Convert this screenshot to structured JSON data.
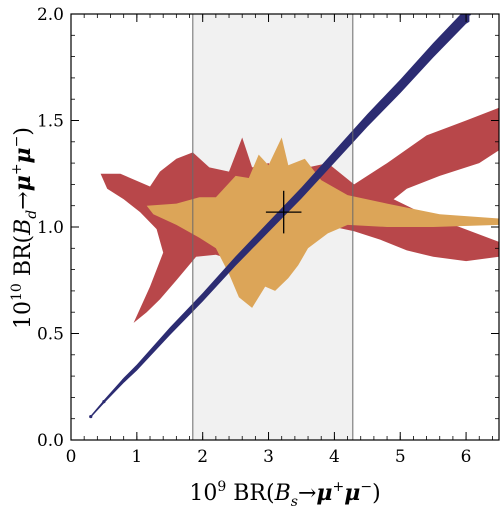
{
  "chart_data": {
    "type": "scatter",
    "title": "",
    "xlabel": "10^9 BR(B_s→μ^+μ^−)",
    "ylabel": "10^10 BR(B_d→μ^+μ^−)",
    "xlabel_parts": {
      "prefix": "10",
      "prefix_exp": "9",
      "br": " BR(",
      "var": "B",
      "var_sub": "s",
      "arrow": "→",
      "mu1": "μ",
      "mu1_sup": "+",
      "mu2": "μ",
      "mu2_sup": "−",
      "close": ")"
    },
    "ylabel_parts": {
      "prefix": "10",
      "prefix_exp": "10",
      "br": " BR(",
      "var": "B",
      "var_sub": "d",
      "arrow": "→",
      "mu1": "μ",
      "mu1_sup": "+",
      "mu2": "μ",
      "mu2_sup": "−",
      "close": ")"
    },
    "xlim": [
      0,
      6.5
    ],
    "ylim": [
      0,
      2.0
    ],
    "xticks": [
      0,
      1,
      2,
      3,
      4,
      5,
      6
    ],
    "xtick_labels": [
      "0",
      "1",
      "2",
      "3",
      "4",
      "5",
      "6"
    ],
    "yticks": [
      0.0,
      0.5,
      1.0,
      1.5,
      2.0
    ],
    "ytick_labels": [
      "0.0",
      "0.5",
      "1.0",
      "1.5",
      "2.0"
    ],
    "grid": false,
    "legend": "none",
    "colors": {
      "red_region": "#b8474a",
      "orange_region": "#dca558",
      "blue_band": "#2c2c72",
      "exp_band_fill": "#f1f1f1",
      "exp_band_edge": "#6a6a6a",
      "sm_point": "#000000"
    },
    "experimental_band": {
      "x_min": 1.85,
      "x_max": 4.28
    },
    "sm_point": {
      "x": 3.23,
      "y": 1.07,
      "x_err": 0.27,
      "y_err": 0.1
    },
    "series": [
      {
        "region": "red",
        "outline": [
          [
            0.45,
            1.25
          ],
          [
            0.75,
            1.25
          ],
          [
            1.2,
            1.19
          ],
          [
            1.35,
            1.26
          ],
          [
            1.6,
            1.32
          ],
          [
            1.85,
            1.35
          ],
          [
            2.1,
            1.28
          ],
          [
            2.4,
            1.26
          ],
          [
            2.6,
            1.42
          ],
          [
            2.75,
            1.28
          ],
          [
            3.0,
            1.3
          ],
          [
            3.2,
            1.25
          ],
          [
            3.6,
            1.28
          ],
          [
            3.9,
            1.3
          ],
          [
            4.3,
            1.2
          ],
          [
            4.8,
            1.3
          ],
          [
            5.4,
            1.43
          ],
          [
            6.0,
            1.5
          ],
          [
            6.5,
            1.56
          ],
          [
            6.5,
            1.36
          ],
          [
            6.2,
            1.3
          ],
          [
            5.6,
            1.24
          ],
          [
            5.1,
            1.18
          ],
          [
            4.9,
            1.13
          ],
          [
            5.3,
            1.07
          ],
          [
            5.9,
            1.0
          ],
          [
            6.5,
            0.93
          ],
          [
            6.5,
            0.86
          ],
          [
            6.0,
            0.84
          ],
          [
            5.5,
            0.86
          ],
          [
            5.1,
            0.89
          ],
          [
            4.7,
            0.94
          ],
          [
            4.3,
            0.98
          ],
          [
            4.0,
            1.0
          ],
          [
            3.7,
            0.99
          ],
          [
            3.4,
            0.96
          ],
          [
            3.2,
            0.8
          ],
          [
            3.05,
            0.88
          ],
          [
            2.95,
            0.77
          ],
          [
            2.8,
            0.86
          ],
          [
            2.55,
            0.8
          ],
          [
            2.4,
            0.85
          ],
          [
            2.2,
            0.87
          ],
          [
            1.9,
            0.86
          ],
          [
            1.6,
            0.75
          ],
          [
            1.35,
            0.66
          ],
          [
            1.15,
            0.6
          ],
          [
            0.95,
            0.55
          ],
          [
            1.2,
            0.72
          ],
          [
            1.4,
            0.88
          ],
          [
            1.3,
            0.99
          ],
          [
            1.05,
            1.07
          ],
          [
            0.8,
            1.13
          ],
          [
            0.55,
            1.18
          ]
        ]
      },
      {
        "region": "orange",
        "outline": [
          [
            1.15,
            1.1
          ],
          [
            1.6,
            1.11
          ],
          [
            1.95,
            1.14
          ],
          [
            2.2,
            1.14
          ],
          [
            2.5,
            1.24
          ],
          [
            2.7,
            1.23
          ],
          [
            2.85,
            1.34
          ],
          [
            3.0,
            1.29
          ],
          [
            3.2,
            1.42
          ],
          [
            3.3,
            1.29
          ],
          [
            3.55,
            1.32
          ],
          [
            3.8,
            1.22
          ],
          [
            4.2,
            1.15
          ],
          [
            4.8,
            1.11
          ],
          [
            5.6,
            1.06
          ],
          [
            6.5,
            1.04
          ],
          [
            6.5,
            1.01
          ],
          [
            5.5,
            1.0
          ],
          [
            4.8,
            1.0
          ],
          [
            4.2,
            1.01
          ],
          [
            3.9,
            0.97
          ],
          [
            3.6,
            0.9
          ],
          [
            3.45,
            0.82
          ],
          [
            3.3,
            0.76
          ],
          [
            3.1,
            0.7
          ],
          [
            2.95,
            0.72
          ],
          [
            2.75,
            0.62
          ],
          [
            2.55,
            0.67
          ],
          [
            2.4,
            0.78
          ],
          [
            2.2,
            0.9
          ],
          [
            1.95,
            0.95
          ],
          [
            1.6,
            1.01
          ],
          [
            1.25,
            1.06
          ]
        ]
      },
      {
        "region": "blue",
        "name": "",
        "x": [
          0.3,
          0.5,
          0.8,
          1.0,
          1.5,
          2.0,
          2.5,
          3.0,
          3.5,
          4.0,
          4.5,
          5.0,
          5.5,
          6.0,
          6.05
        ],
        "y": [
          0.11,
          0.18,
          0.28,
          0.34,
          0.51,
          0.67,
          0.84,
          1.0,
          1.16,
          1.33,
          1.5,
          1.66,
          1.83,
          1.99,
          2.0
        ],
        "half_width_y": [
          0.005,
          0.008,
          0.012,
          0.014,
          0.018,
          0.02,
          0.022,
          0.024,
          0.026,
          0.028,
          0.03,
          0.032,
          0.034,
          0.036,
          0.036
        ]
      }
    ]
  }
}
